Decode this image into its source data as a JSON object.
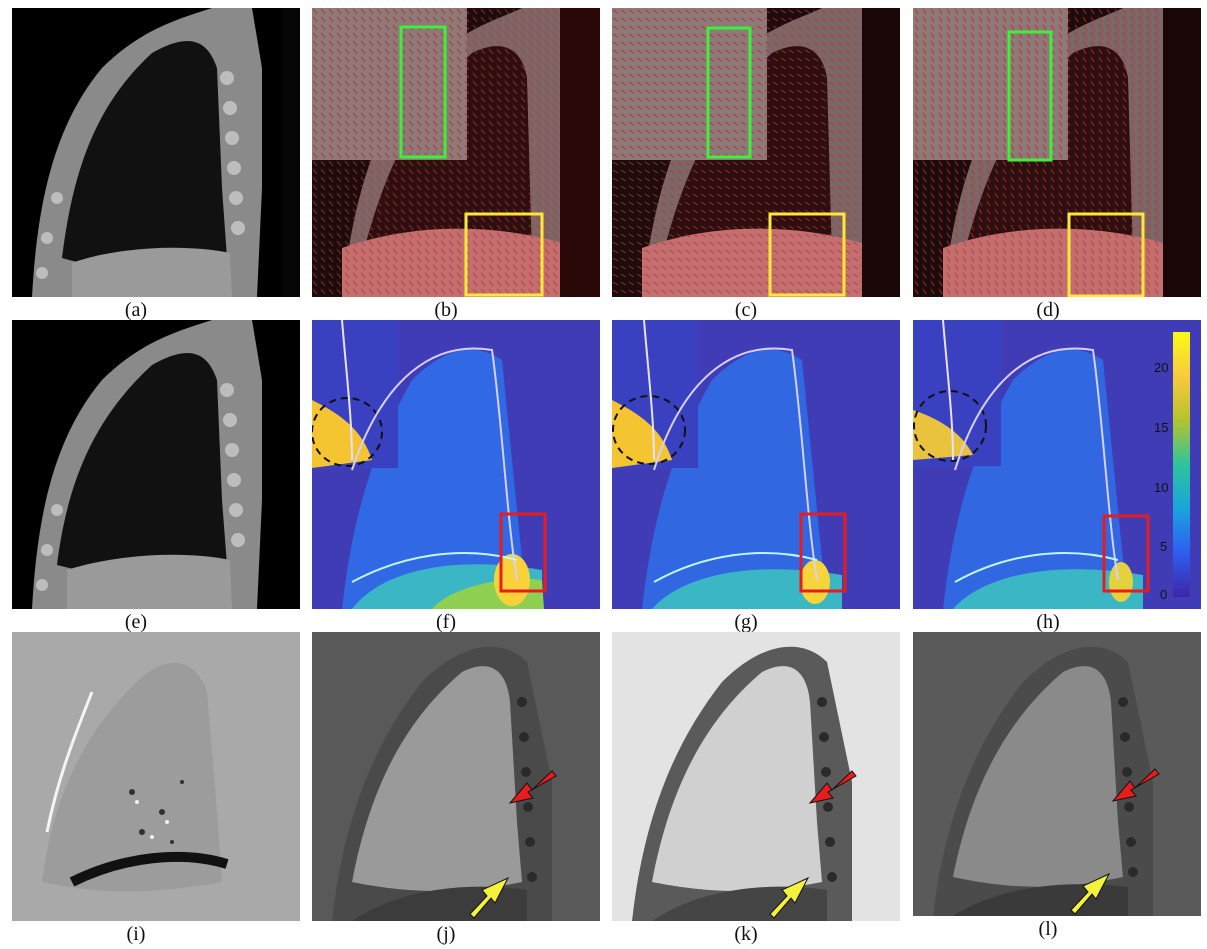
{
  "figure": {
    "captions": [
      "(a)",
      "(b)",
      "(c)",
      "(d)",
      "(e)",
      "(f)",
      "(g)",
      "(h)",
      "(i)",
      "(j)",
      "(k)",
      "(l)"
    ]
  },
  "colorbar": {
    "ticks": [
      "20",
      "15",
      "10",
      "5",
      "0"
    ],
    "range": [
      0,
      22
    ],
    "colormap": [
      "#3e26a8",
      "#2e5ef0",
      "#1aa3dc",
      "#2ec49a",
      "#b6c32e",
      "#f9c93e",
      "#f9fb15"
    ]
  },
  "colors": {
    "background": "#ffffff",
    "vector_field": "#e0201c",
    "yellow_box": "#ffe83a",
    "green_box": "#3cf03c",
    "red_box": "#e81c1c",
    "red_arrow": "#e81c1c",
    "yellow_arrow": "#f5f23c",
    "dashed_circle": "#111111"
  }
}
